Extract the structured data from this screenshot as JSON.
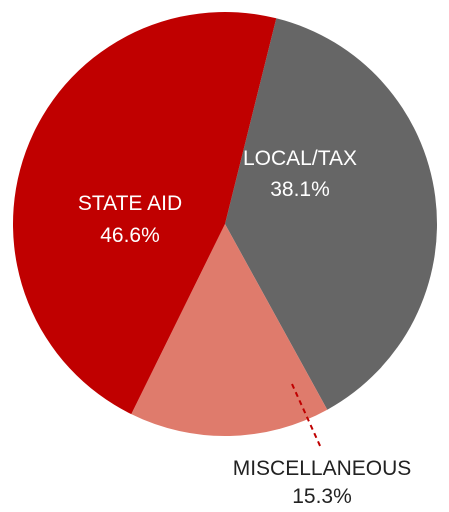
{
  "chart_data": {
    "type": "pie",
    "slices": [
      {
        "label": "LOCAL/TAX",
        "percent_label": "38.1%",
        "value": 38.1,
        "color": "#666666",
        "label_position": "inside"
      },
      {
        "label": "MISCELLANEOUS",
        "percent_label": "15.3%",
        "value": 15.3,
        "color": "#df7b6c",
        "label_position": "outside"
      },
      {
        "label": "STATE AID",
        "percent_label": "46.6%",
        "value": 46.6,
        "color": "#c00000",
        "label_position": "inside"
      }
    ],
    "start_angle_deg": 76.0,
    "direction": "clockwise",
    "leader_line_style": "dashed"
  }
}
